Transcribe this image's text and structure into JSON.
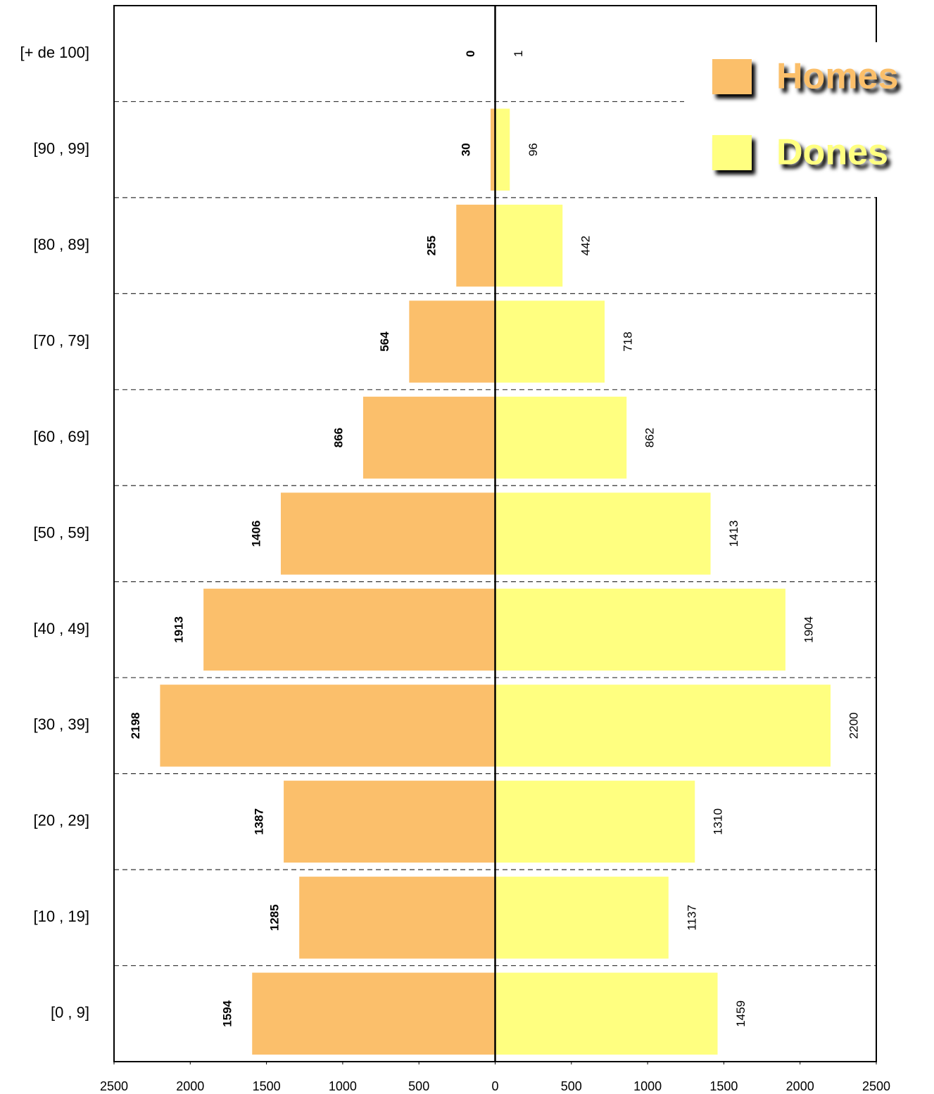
{
  "chart_data": {
    "type": "pyramid",
    "categories": [
      "[+ de 100]",
      "[90 , 99]",
      "[80 , 89]",
      "[70 , 79]",
      "[60 , 69]",
      "[50 , 59]",
      "[40 , 49]",
      "[30 , 39]",
      "[20 , 29]",
      "[10 , 19]",
      "[0 , 9]"
    ],
    "series": [
      {
        "name": "Homes",
        "color": "#fbbf6b",
        "values": [
          0,
          30,
          255,
          564,
          866,
          1406,
          1913,
          2198,
          1387,
          1285,
          1594
        ]
      },
      {
        "name": "Dones",
        "color": "#ffff80",
        "values": [
          1,
          96,
          442,
          718,
          862,
          1413,
          1904,
          2200,
          1310,
          1137,
          1459
        ]
      }
    ],
    "xlim": [
      -2500,
      2500
    ],
    "xticks": [
      {
        "value": -2500,
        "label": "2500"
      },
      {
        "value": -2000,
        "label": "2000"
      },
      {
        "value": -1500,
        "label": "1500"
      },
      {
        "value": -1000,
        "label": "1000"
      },
      {
        "value": -500,
        "label": "500"
      },
      0,
      500,
      1000,
      1500,
      2000,
      2500
    ],
    "grid": true,
    "legend": "upper right"
  }
}
